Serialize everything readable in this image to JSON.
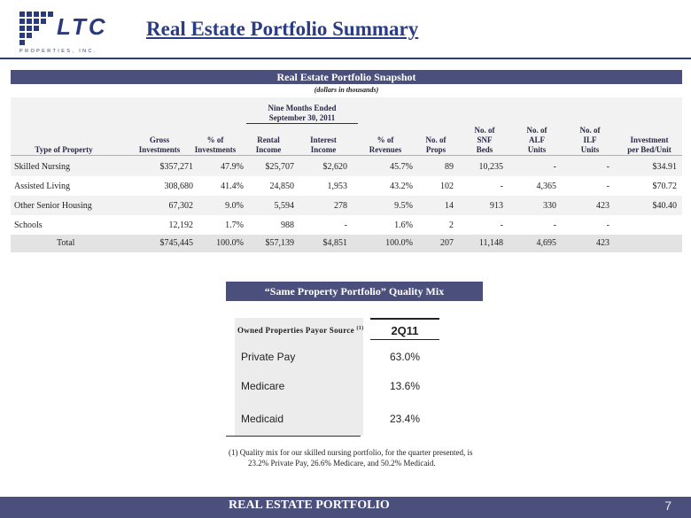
{
  "logo": {
    "text": "LTC",
    "subtext": "PROPERTIES, INC."
  },
  "page_title": "Real Estate Portfolio Summary",
  "snapshot": {
    "title": "Real Estate Portfolio Snapshot",
    "subtitle": "(dollars in thousands)",
    "period_label_1": "Nine Months Ended",
    "period_label_2": "September 30, 2011",
    "headers": {
      "type": "Type of Property",
      "gross_1": "Gross",
      "gross_2": "Investments",
      "pct_inv_1": "% of",
      "pct_inv_2": "Investments",
      "rental_1": "Rental",
      "rental_2": "Income",
      "interest_1": "Interest",
      "interest_2": "Income",
      "pct_rev_1": "% of",
      "pct_rev_2": "Revenues",
      "props_1": "No. of",
      "props_2": "Props",
      "snf_1": "No. of",
      "snf_2": "SNF",
      "snf_3": "Beds",
      "alf_1": "No. of",
      "alf_2": "ALF",
      "alf_3": "Units",
      "ilf_1": "No. of",
      "ilf_2": "ILF",
      "ilf_3": "Units",
      "inv_1": "Investment",
      "inv_2": "per Bed/Unit"
    },
    "rows": [
      {
        "type": "Skilled Nursing",
        "gross": "$357,271",
        "pct_inv": "47.9%",
        "rental": "$25,707",
        "interest": "$2,620",
        "pct_rev": "45.7%",
        "props": "89",
        "snf": "10,235",
        "alf": "-",
        "ilf": "-",
        "inv": "$34.91"
      },
      {
        "type": "Assisted Living",
        "gross": "308,680",
        "pct_inv": "41.4%",
        "rental": "24,850",
        "interest": "1,953",
        "pct_rev": "43.2%",
        "props": "102",
        "snf": "-",
        "alf": "4,365",
        "ilf": "-",
        "inv": "$70.72"
      },
      {
        "type": "Other Senior Housing",
        "gross": "67,302",
        "pct_inv": "9.0%",
        "rental": "5,594",
        "interest": "278",
        "pct_rev": "9.5%",
        "props": "14",
        "snf": "913",
        "alf": "330",
        "ilf": "423",
        "inv": "$40.40"
      },
      {
        "type": "Schools",
        "gross": "12,192",
        "pct_inv": "1.7%",
        "rental": "988",
        "interest": "-",
        "pct_rev": "1.6%",
        "props": "2",
        "snf": "-",
        "alf": "-",
        "ilf": "-",
        "inv": ""
      },
      {
        "type": "Total",
        "gross": "$745,445",
        "pct_inv": "100.0%",
        "rental": "$57,139",
        "interest": "$4,851",
        "pct_rev": "100.0%",
        "props": "207",
        "snf": "11,148",
        "alf": "4,695",
        "ilf": "423",
        "inv": ""
      }
    ]
  },
  "quality_mix": {
    "title": "“Same Property Portfolio” Quality Mix",
    "label_header": "Owned Properties Payor Source",
    "label_header_note": "(1)",
    "column_header": "2Q11",
    "rows": [
      {
        "label": "Private Pay",
        "value": "63.0%"
      },
      {
        "label": "Medicare",
        "value": "13.6%"
      },
      {
        "label": "Medicaid",
        "value": "23.4%"
      }
    ],
    "footnote_marker": "(1)",
    "footnote_line1": "Quality mix for our skilled nursing portfolio, for the quarter presented, is",
    "footnote_line2": "23.2% Private Pay, 26.6% Medicare, and 50.2% Medicaid."
  },
  "footer": {
    "label": "REAL ESTATE PORTFOLIO",
    "page_number": "7"
  },
  "colors": {
    "title": "#2b3c86",
    "band": "#4b4f7c"
  }
}
